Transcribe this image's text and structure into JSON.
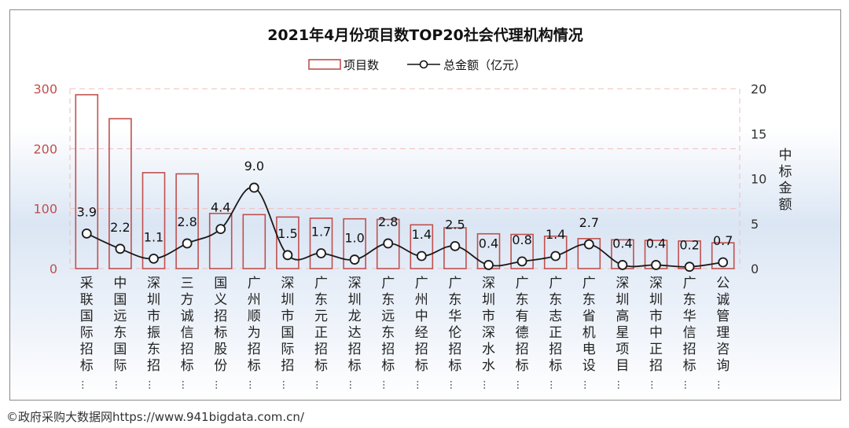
{
  "chart_data": {
    "type": "bar+line",
    "title": "2021年4月份项目数TOP20社会代理机构情况",
    "legend": [
      "项目数",
      "总金额（亿元）"
    ],
    "y2label": "中标金额",
    "left_ylim": [
      0,
      300
    ],
    "left_ticks": [
      "0",
      "100",
      "200",
      "300"
    ],
    "right_ylim": [
      0,
      20
    ],
    "right_ticks": [
      "0",
      "5",
      "10",
      "15",
      "20"
    ],
    "categories": [
      "采联国际招标…",
      "中国远东国际…",
      "深圳市振东招…",
      "三方诚信招标…",
      "国义招标股份…",
      "广州顺为招标…",
      "深圳市国际招…",
      "广东元正招标…",
      "深圳龙达招标…",
      "广东远东招标…",
      "广州中经招标…",
      "广东华伦招标…",
      "深圳市深水水…",
      "广东有德招标…",
      "广东志正招标…",
      "广东省机电设…",
      "深圳高星项目…",
      "深圳市中正招…",
      "广东华信招标…",
      "公诚管理咨询…"
    ],
    "series": [
      {
        "name": "项目数",
        "axis": "left",
        "values": [
          290,
          250,
          160,
          158,
          92,
          90,
          86,
          84,
          83,
          82,
          73,
          68,
          58,
          57,
          54,
          50,
          48,
          47,
          46,
          43
        ]
      },
      {
        "name": "总金额（亿元）",
        "axis": "right",
        "values": [
          3.9,
          2.2,
          1.1,
          2.8,
          4.4,
          9.0,
          1.5,
          1.7,
          1.0,
          2.8,
          1.4,
          2.5,
          0.4,
          0.8,
          1.4,
          2.7,
          0.4,
          0.4,
          0.2,
          0.7
        ],
        "labels": [
          "3.9",
          "2.2",
          "1.1",
          "2.8",
          "4.4",
          "9.0",
          "1.5",
          "1.7",
          "1.0",
          "2.8",
          "1.4",
          "2.5",
          "0.4",
          "0.8",
          "1.4",
          "2.7",
          "0.4",
          "0.4",
          "0.2",
          "0.7"
        ]
      }
    ]
  },
  "colors": {
    "bar_stroke": "#c0504d",
    "left_axis_text": "#c0504d",
    "right_axis_text": "#333333",
    "grid": "#f2bcbc",
    "line": "#1a1a1a"
  },
  "footer": "©政府采购大数据网https://www.941bigdata.com.cn/"
}
